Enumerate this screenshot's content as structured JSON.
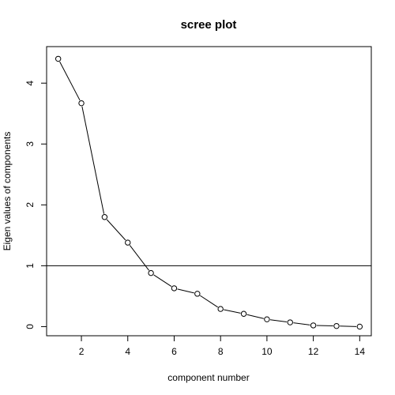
{
  "chart_data": {
    "type": "line",
    "title": "scree plot",
    "xlabel": "component number",
    "ylabel": "Eigen values of components",
    "x": [
      1,
      2,
      3,
      4,
      5,
      6,
      7,
      8,
      9,
      10,
      11,
      12,
      13,
      14
    ],
    "series": [
      {
        "values": [
          4.4,
          3.67,
          1.8,
          1.38,
          0.88,
          0.63,
          0.54,
          0.29,
          0.21,
          0.12,
          0.07,
          0.02,
          0.01,
          0.0
        ]
      }
    ],
    "reference_line": {
      "orientation": "horizontal",
      "y": 1
    },
    "xlim": [
      0.5,
      14.5
    ],
    "ylim": [
      -0.15,
      4.6
    ],
    "xticks": [
      "2",
      "4",
      "6",
      "8",
      "10",
      "12",
      "14"
    ],
    "yticks": [
      "0",
      "1",
      "2",
      "3",
      "4"
    ],
    "marker": "open-circle",
    "grid": false,
    "legend": "none",
    "colors": {
      "line": "#000000",
      "marker_fill": "#ffffff"
    }
  }
}
